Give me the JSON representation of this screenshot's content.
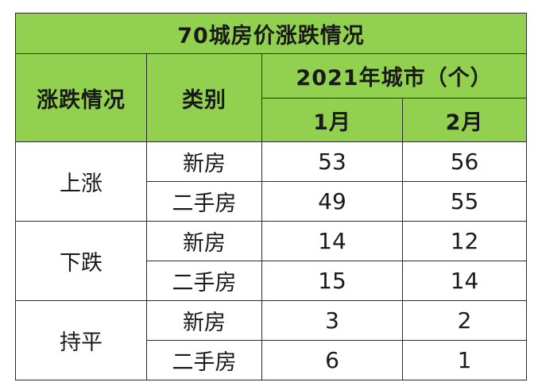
{
  "table": {
    "title": "70城房价涨跌情况",
    "headers": {
      "trend": "涨跌情况",
      "category": "类别",
      "group": "2021年城市（个）",
      "months": [
        "1月",
        "2月"
      ]
    },
    "rows": [
      {
        "trend": "上涨",
        "category": "新房",
        "jan": "53",
        "feb": "56"
      },
      {
        "trend": "上涨",
        "category": "二手房",
        "jan": "49",
        "feb": "55"
      },
      {
        "trend": "下跌",
        "category": "新房",
        "jan": "14",
        "feb": "12"
      },
      {
        "trend": "下跌",
        "category": "二手房",
        "jan": "15",
        "feb": "14"
      },
      {
        "trend": "持平",
        "category": "新房",
        "jan": "3",
        "feb": "2"
      },
      {
        "trend": "持平",
        "category": "二手房",
        "jan": "6",
        "feb": "1"
      }
    ]
  },
  "colors": {
    "header_bg": "#92d050",
    "header_text": "#ffffff",
    "border": "#2b2b2b"
  }
}
